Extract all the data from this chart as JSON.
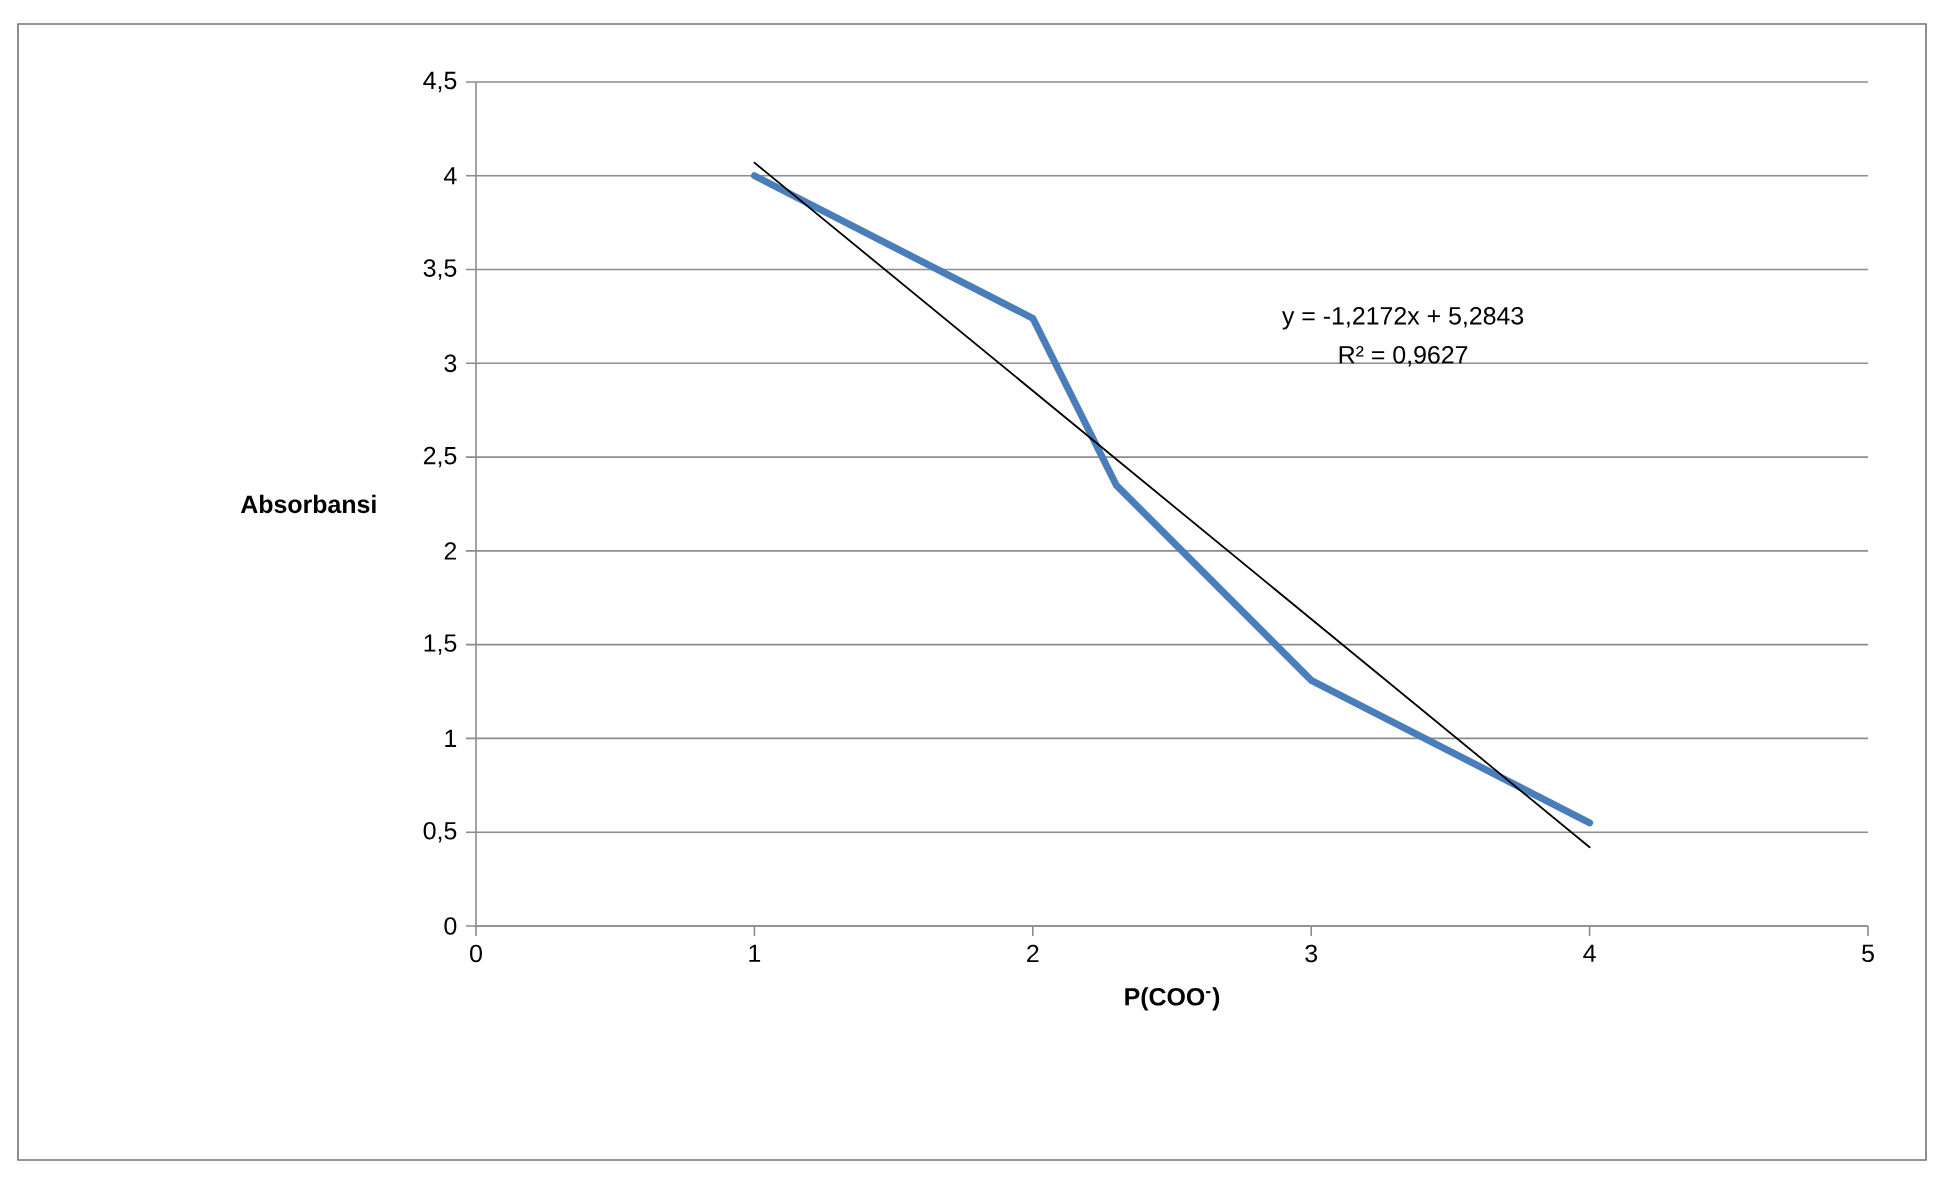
{
  "chart_data": {
    "type": "line",
    "xlabel": "P(COO$^{-}$)",
    "ylabel": "Absorbansi",
    "x": [
      1,
      2,
      2.3,
      3,
      4
    ],
    "series": [
      {
        "color": "#4a7ebb",
        "values": [
          4.0,
          3.24,
          2.35,
          1.31,
          0.55
        ]
      },
      {
        "type": "line",
        "color": "#000000",
        "x": [
          1,
          4
        ],
        "values": [
          4.07,
          0.42
        ]
      }
    ],
    "xlim": [
      0,
      5
    ],
    "xticks": [
      0,
      1,
      2,
      3,
      4,
      5
    ],
    "ylim": [
      0,
      4.5
    ],
    "yticks": [
      0,
      {
        "value": 0.5,
        "label": "0,5"
      },
      1,
      {
        "value": 1.5,
        "label": "1,5"
      },
      2,
      {
        "value": 2.5,
        "label": "2,5"
      },
      3,
      {
        "value": 3.5,
        "label": "3,5"
      },
      4,
      {
        "value": 4.5,
        "label": "4,5"
      }
    ],
    "grid": "y",
    "marker": "none",
    "line_style": "solid",
    "annotations": [
      "y = -1,2172x + 5,2843",
      "R² = 0,9627"
    ]
  }
}
